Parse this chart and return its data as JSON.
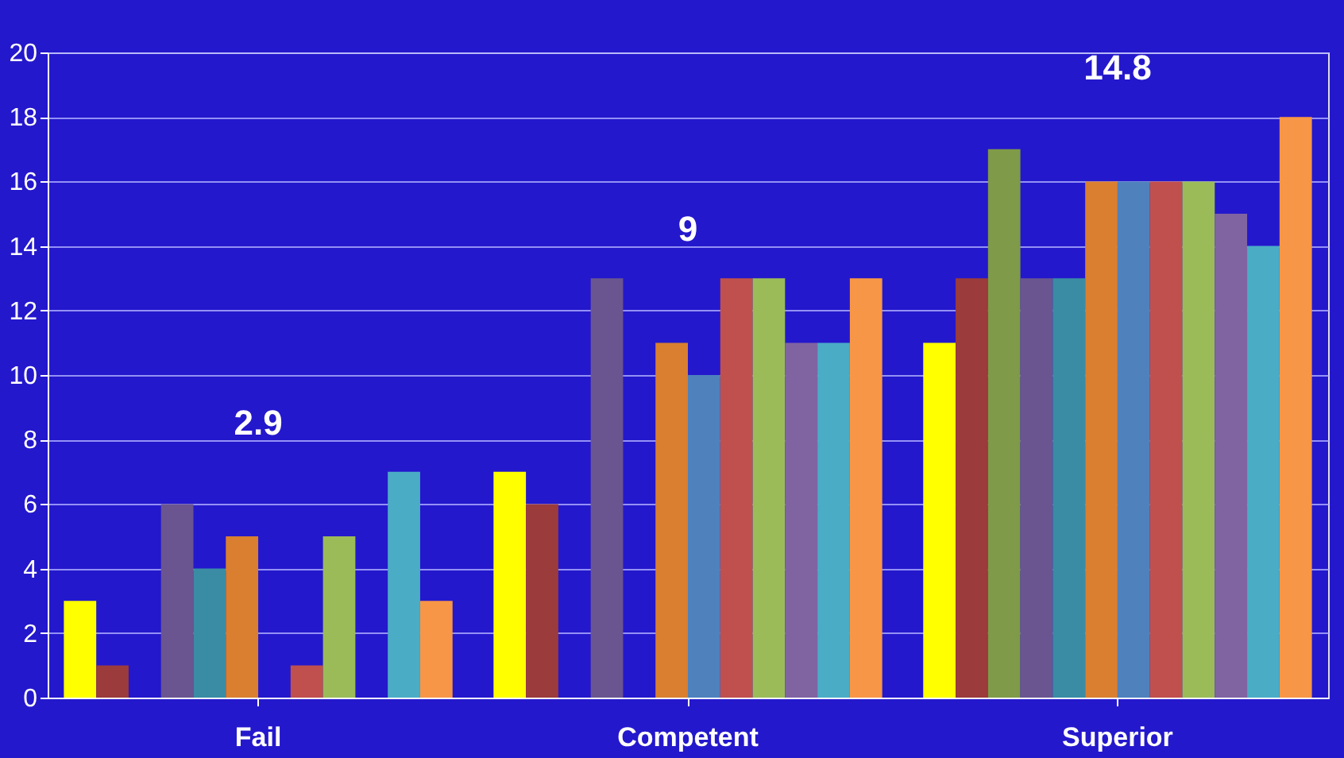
{
  "chart_data": {
    "type": "bar",
    "categories": [
      "Fail",
      "Competent",
      "Superior"
    ],
    "series": [
      {
        "color": "#ffff00",
        "values": [
          3,
          7,
          11
        ]
      },
      {
        "color": "#9b3b3b",
        "values": [
          1,
          6,
          13
        ]
      },
      {
        "color": "#7f9a48",
        "values": [
          0,
          0,
          17
        ]
      },
      {
        "color": "#6a5590",
        "values": [
          6,
          13,
          13
        ]
      },
      {
        "color": "#3a8ca4",
        "values": [
          4,
          0,
          13
        ]
      },
      {
        "color": "#d97f2f",
        "values": [
          5,
          11,
          16
        ]
      },
      {
        "color": "#4f81bd",
        "values": [
          0,
          10,
          16
        ]
      },
      {
        "color": "#c0504d",
        "values": [
          1,
          13,
          16
        ]
      },
      {
        "color": "#9bbb59",
        "values": [
          5,
          13,
          16
        ]
      },
      {
        "color": "#8064a2",
        "values": [
          0,
          11,
          15
        ]
      },
      {
        "color": "#4bacc6",
        "values": [
          7,
          11,
          14
        ]
      },
      {
        "color": "#f79646",
        "values": [
          3,
          13,
          18
        ]
      }
    ],
    "annotations": [
      "2.9",
      "9",
      "14.8"
    ],
    "ylim": [
      0,
      20
    ],
    "yticks": [
      0,
      2,
      4,
      6,
      8,
      10,
      12,
      14,
      16,
      18,
      20
    ],
    "grid": "y",
    "legend": false
  }
}
